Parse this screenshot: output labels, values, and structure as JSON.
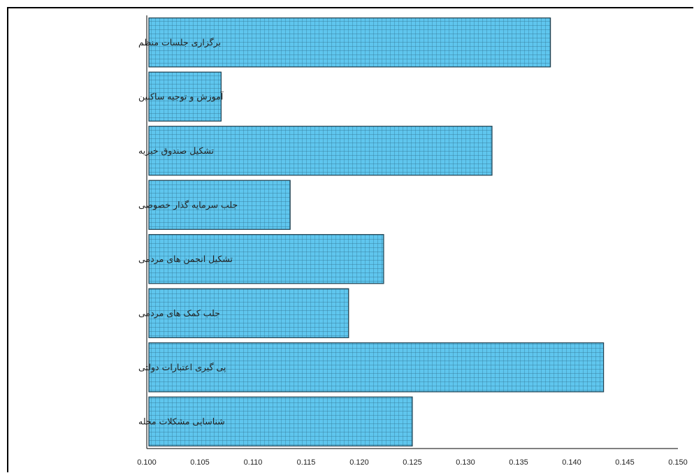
{
  "chart_data": {
    "type": "bar",
    "orientation": "horizontal",
    "categories": [
      "برگزاری جلسات منظم",
      "آموزش و توجیه ساکنین",
      "تشکیل صندوق خیریه",
      "جلب سرمایه گذار خصوصی",
      "تشکیل انجمن های مردمی",
      "جلب کمک های مردمی",
      "پی گیری اعتبارات دولتی",
      "شناسایی مشکلات محله"
    ],
    "values": [
      0.138,
      0.107,
      0.1325,
      0.1135,
      0.1223,
      0.119,
      0.143,
      0.125
    ],
    "xlim": [
      0.1,
      0.15
    ],
    "ticks": [
      "0.100",
      "0.105",
      "0.110",
      "0.115",
      "0.120",
      "0.125",
      "0.130",
      "0.135",
      "0.140",
      "0.145",
      "0.150"
    ],
    "title": "",
    "xlabel": "",
    "ylabel": "",
    "grid": false,
    "bar_color": "#5fc6ee",
    "bar_pattern": "grid"
  }
}
